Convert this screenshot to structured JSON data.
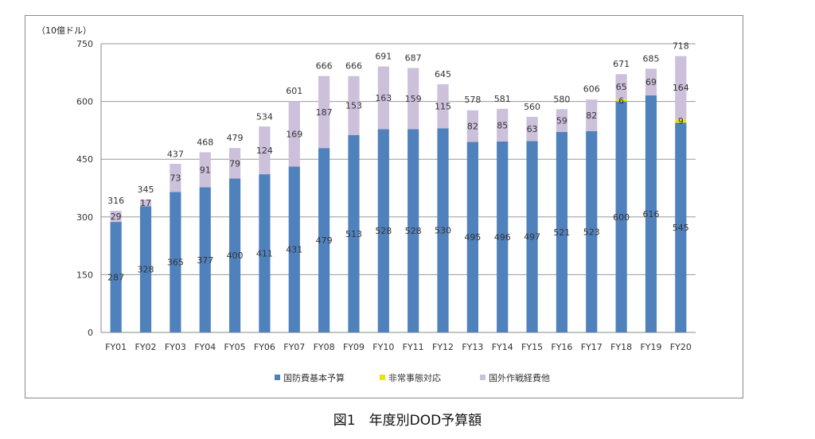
{
  "caption": "図1　年度別DOD予算額",
  "chart_data": {
    "type": "bar",
    "stacked": true,
    "unit_label": "（10億ドル）",
    "categories": [
      "FY01",
      "FY02",
      "FY03",
      "FY04",
      "FY05",
      "FY06",
      "FY07",
      "FY08",
      "FY09",
      "FY10",
      "FY11",
      "FY12",
      "FY13",
      "FY14",
      "FY15",
      "FY16",
      "FY17",
      "FY18",
      "FY19",
      "FY20"
    ],
    "series": [
      {
        "name": "国防費基本予算",
        "color": "#4f81bd",
        "values": [
          287,
          328,
          365,
          377,
          400,
          411,
          431,
          479,
          513,
          528,
          528,
          530,
          495,
          496,
          497,
          521,
          523,
          600,
          616,
          545
        ]
      },
      {
        "name": "非常事態対応",
        "color": "#e6e600",
        "values": [
          null,
          null,
          null,
          null,
          null,
          null,
          null,
          null,
          null,
          null,
          null,
          null,
          null,
          null,
          null,
          null,
          null,
          6,
          null,
          9
        ]
      },
      {
        "name": "国外作戦経費他",
        "color": "#ccc0da",
        "values": [
          29,
          17,
          73,
          91,
          79,
          124,
          169,
          187,
          153,
          163,
          159,
          115,
          82,
          85,
          63,
          59,
          82,
          65,
          69,
          164
        ]
      }
    ],
    "totals": [
      316,
      345,
      437,
      468,
      479,
      534,
      601,
      666,
      666,
      691,
      687,
      645,
      578,
      581,
      560,
      580,
      606,
      671,
      685,
      718
    ],
    "ylim": [
      0,
      750
    ],
    "yticks": [
      0,
      150,
      300,
      450,
      600,
      750
    ],
    "grid": true,
    "legend": "bottom"
  }
}
